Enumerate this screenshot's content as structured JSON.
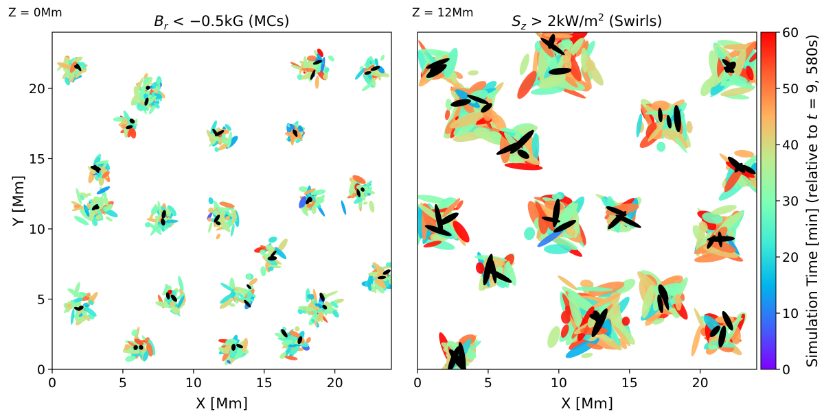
{
  "figure": {
    "colormap": [
      "#8000ff",
      "#4062fa",
      "#00b5eb",
      "#40ecd4",
      "#80ffb4",
      "#c0eb8d",
      "#ffb360",
      "#ff6130",
      "#ff0000"
    ],
    "black_feature_color": "#000000"
  },
  "chart_data": [
    {
      "type": "scatter",
      "panel": "left",
      "title": "B_r < −0.5kG (MCs)",
      "title_parts": {
        "symbol": "B",
        "sub": "r",
        "rest": " < −0.5kG (MCs)"
      },
      "annotation": "Z = 0Mm",
      "xlabel": "X [Mm]",
      "ylabel": "Y [Mm]",
      "xlim": [
        0,
        24
      ],
      "ylim": [
        0,
        24
      ],
      "xticks": [
        0,
        5,
        10,
        15,
        20
      ],
      "yticks": [
        0,
        5,
        10,
        15,
        20
      ],
      "grid": false,
      "color_encoding": "simulation time [min]",
      "clusters": [
        {
          "x": 1.5,
          "y": 21.5,
          "spread": 1.3,
          "count": 40
        },
        {
          "x": 6.6,
          "y": 19.5,
          "spread": 1.6,
          "count": 55
        },
        {
          "x": 5.4,
          "y": 17.5,
          "spread": 1.0,
          "count": 25
        },
        {
          "x": 3.0,
          "y": 11.5,
          "spread": 1.6,
          "count": 45
        },
        {
          "x": 3.4,
          "y": 14.2,
          "spread": 1.0,
          "count": 25
        },
        {
          "x": 7.8,
          "y": 10.7,
          "spread": 1.3,
          "count": 40
        },
        {
          "x": 12.0,
          "y": 10.8,
          "spread": 1.6,
          "count": 45
        },
        {
          "x": 11.8,
          "y": 16.5,
          "spread": 1.2,
          "count": 28
        },
        {
          "x": 17.2,
          "y": 16.8,
          "spread": 0.9,
          "count": 22
        },
        {
          "x": 18.5,
          "y": 21.5,
          "spread": 1.5,
          "count": 40
        },
        {
          "x": 22.7,
          "y": 21.2,
          "spread": 1.2,
          "count": 35
        },
        {
          "x": 21.8,
          "y": 12.5,
          "spread": 1.5,
          "count": 35
        },
        {
          "x": 18.3,
          "y": 12.0,
          "spread": 1.1,
          "count": 25
        },
        {
          "x": 23.3,
          "y": 6.5,
          "spread": 1.3,
          "count": 40
        },
        {
          "x": 19.0,
          "y": 4.5,
          "spread": 1.8,
          "count": 45
        },
        {
          "x": 17.0,
          "y": 2.0,
          "spread": 1.5,
          "count": 40
        },
        {
          "x": 12.8,
          "y": 1.5,
          "spread": 1.3,
          "count": 40
        },
        {
          "x": 6.0,
          "y": 1.5,
          "spread": 1.3,
          "count": 35
        },
        {
          "x": 2.0,
          "y": 4.5,
          "spread": 1.6,
          "count": 35
        },
        {
          "x": 8.3,
          "y": 5.0,
          "spread": 1.4,
          "count": 30
        },
        {
          "x": 13.5,
          "y": 5.5,
          "spread": 1.6,
          "count": 30
        },
        {
          "x": 15.5,
          "y": 8.0,
          "spread": 1.5,
          "count": 25
        }
      ]
    },
    {
      "type": "scatter",
      "panel": "right",
      "title": "S_z > 2kW/m² (Swirls)",
      "title_parts": {
        "symbol": "S",
        "sub": "z",
        "rest": " > 2kW/m",
        "sup": "2",
        "tail": " (Swirls)"
      },
      "annotation": "Z = 12Mm",
      "xlabel": "X [Mm]",
      "xlim": [
        0,
        24
      ],
      "ylim": [
        0,
        24
      ],
      "xticks": [
        0,
        5,
        10,
        15,
        20
      ],
      "grid": false,
      "color_encoding": "simulation time [min]",
      "clusters": [
        {
          "x": 12.5,
          "y": 3.5,
          "spread": 3.2,
          "count": 110
        },
        {
          "x": 21.3,
          "y": 9.5,
          "spread": 2.2,
          "count": 60
        },
        {
          "x": 22.5,
          "y": 21.5,
          "spread": 2.5,
          "count": 70
        },
        {
          "x": 10.0,
          "y": 22.0,
          "spread": 3.0,
          "count": 80
        },
        {
          "x": 4.0,
          "y": 18.5,
          "spread": 3.0,
          "count": 85
        },
        {
          "x": 1.5,
          "y": 10.5,
          "spread": 2.0,
          "count": 55
        },
        {
          "x": 17.5,
          "y": 17.5,
          "spread": 2.3,
          "count": 50
        },
        {
          "x": 10.0,
          "y": 10.5,
          "spread": 2.5,
          "count": 65
        },
        {
          "x": 3.0,
          "y": 1.0,
          "spread": 1.6,
          "count": 35
        },
        {
          "x": 17.5,
          "y": 5.0,
          "spread": 2.0,
          "count": 50
        },
        {
          "x": 21.5,
          "y": 2.5,
          "spread": 2.0,
          "count": 40
        },
        {
          "x": 7.2,
          "y": 15.8,
          "spread": 1.6,
          "count": 35
        },
        {
          "x": 14.3,
          "y": 11.0,
          "spread": 1.5,
          "count": 30
        },
        {
          "x": 23.0,
          "y": 14.0,
          "spread": 1.5,
          "count": 30
        },
        {
          "x": 5.5,
          "y": 6.8,
          "spread": 1.4,
          "count": 25
        },
        {
          "x": 1.5,
          "y": 21.5,
          "spread": 1.3,
          "count": 30
        }
      ]
    }
  ],
  "colorbar": {
    "label": "Simulation Time [min] (relative to t = 9, 580s)",
    "label_parts": {
      "before": "Simulation Time [min] (relative to ",
      "var": "t",
      "after": " = 9, 580s)"
    },
    "vmin": 0,
    "vmax": 60,
    "ticks": [
      0,
      10,
      20,
      30,
      40,
      50,
      60
    ]
  }
}
